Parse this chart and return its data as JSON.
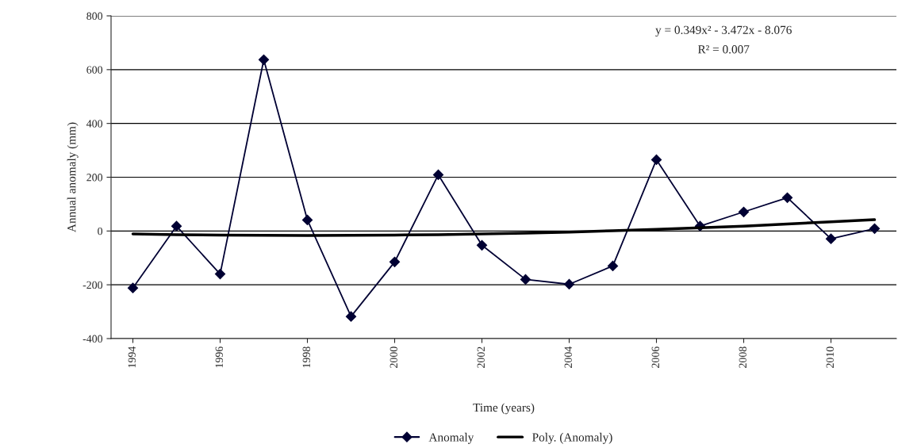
{
  "chart_data": {
    "type": "line",
    "xlabel": "Time (years)",
    "ylabel": "Annual anomaly (mm)",
    "x": [
      1994,
      1995,
      1996,
      1997,
      1998,
      1999,
      2000,
      2001,
      2002,
      2003,
      2004,
      2005,
      2006,
      2007,
      2008,
      2009,
      2010,
      2011
    ],
    "series": [
      {
        "name": "Anomaly",
        "color": "#000033",
        "marker": "diamond",
        "values": [
          -212,
          18,
          -160,
          637,
          41,
          -318,
          -115,
          209,
          -53,
          -180,
          -198,
          -130,
          265,
          18,
          71,
          124,
          -29,
          9
        ]
      },
      {
        "name": "Poly. (Anomaly)",
        "color": "#000000",
        "marker": "none",
        "values": [
          -11,
          -14,
          -15,
          -16,
          -17,
          -16,
          -15,
          -14,
          -11,
          -8,
          -4,
          1,
          6,
          12,
          18,
          26,
          34,
          42
        ]
      }
    ],
    "xlim": [
      1993.5,
      2011.5
    ],
    "xticks": [
      1994,
      1996,
      1998,
      2000,
      2002,
      2004,
      2006,
      2008,
      2010
    ],
    "ylim": [
      -400,
      800
    ],
    "yticks": [
      -400,
      -200,
      0,
      200,
      400,
      600,
      800
    ],
    "grid": "y",
    "legend": "bottom",
    "annotations": [
      "y = 0.349x² - 3.472x - 8.076",
      "R² = 0.007"
    ]
  }
}
